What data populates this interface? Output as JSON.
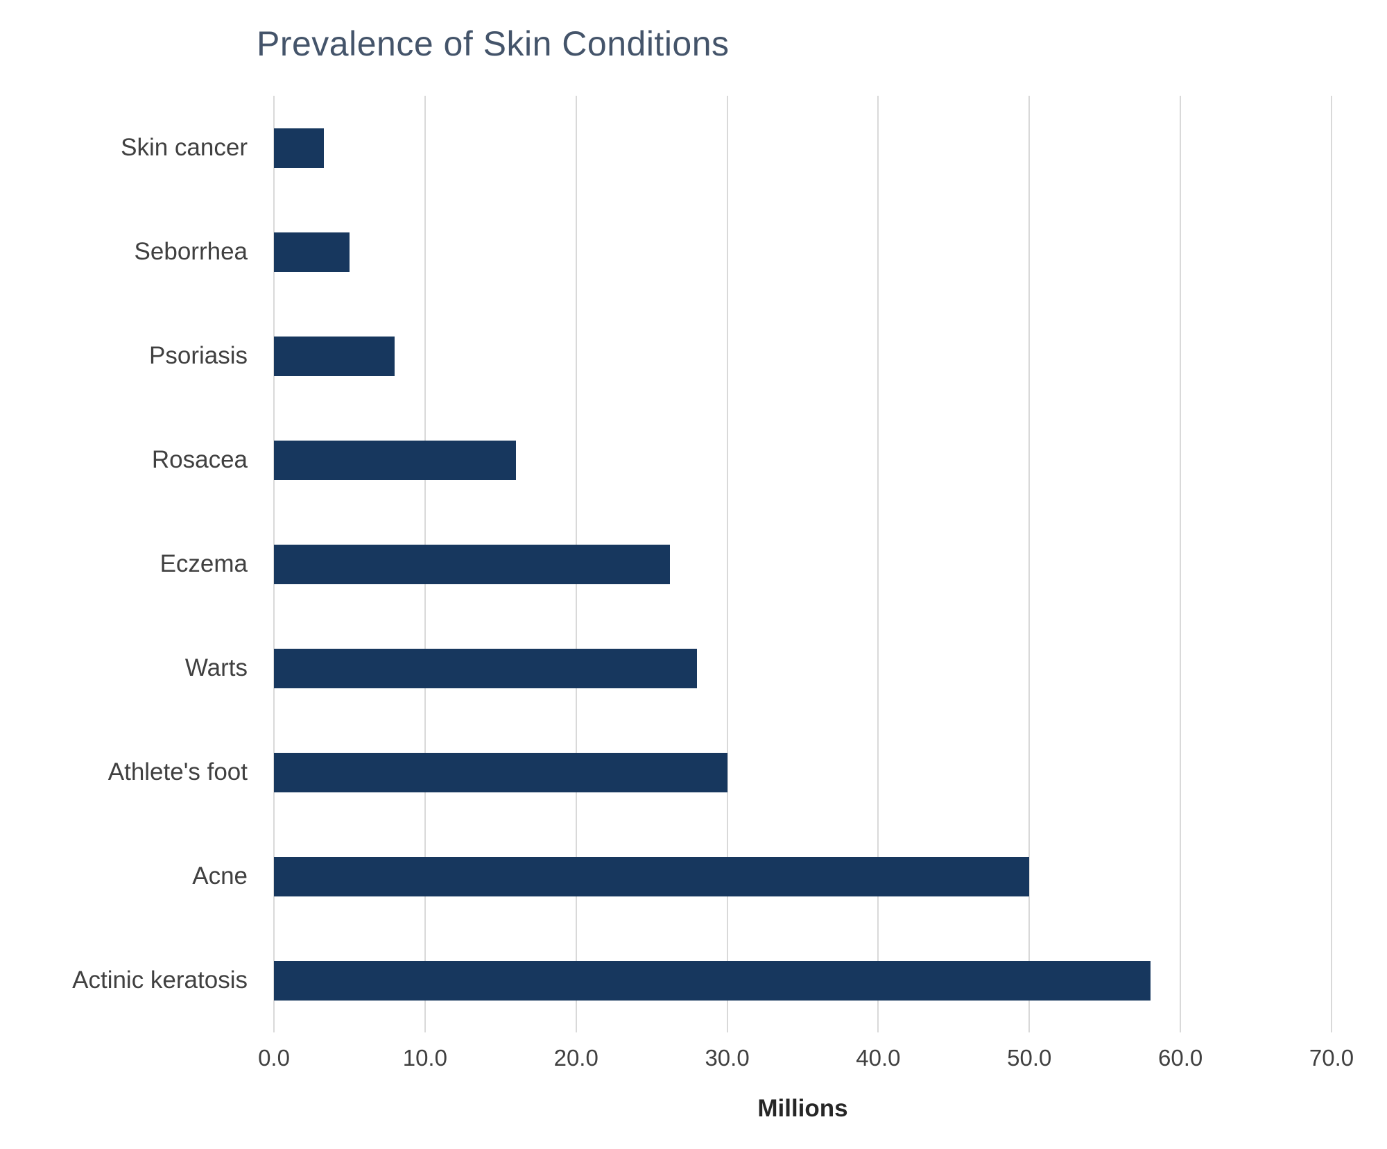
{
  "chart_data": {
    "type": "bar",
    "orientation": "horizontal",
    "title": "Prevalence of Skin Conditions",
    "categories": [
      "Skin cancer",
      "Seborrhea",
      "Psoriasis",
      "Rosacea",
      "Eczema",
      "Warts",
      "Athlete's foot",
      "Acne",
      "Actinic keratosis"
    ],
    "values": [
      3.3,
      5.0,
      8.0,
      16.0,
      26.2,
      28.0,
      30.0,
      50.0,
      58.0
    ],
    "xlabel": "Millions",
    "ylabel": "",
    "xlim": [
      0,
      70
    ],
    "xticks": [
      0,
      10,
      20,
      30,
      40,
      50,
      60,
      70
    ],
    "xtick_labels": [
      "0.0",
      "10.0",
      "20.0",
      "30.0",
      "40.0",
      "50.0",
      "60.0",
      "70.0"
    ],
    "grid": true,
    "legend": "none",
    "colors": {
      "bar": "#17375e",
      "grid": "#d9d9d9",
      "title": "#44546a",
      "text": "#404040",
      "tick": "#404040"
    }
  }
}
